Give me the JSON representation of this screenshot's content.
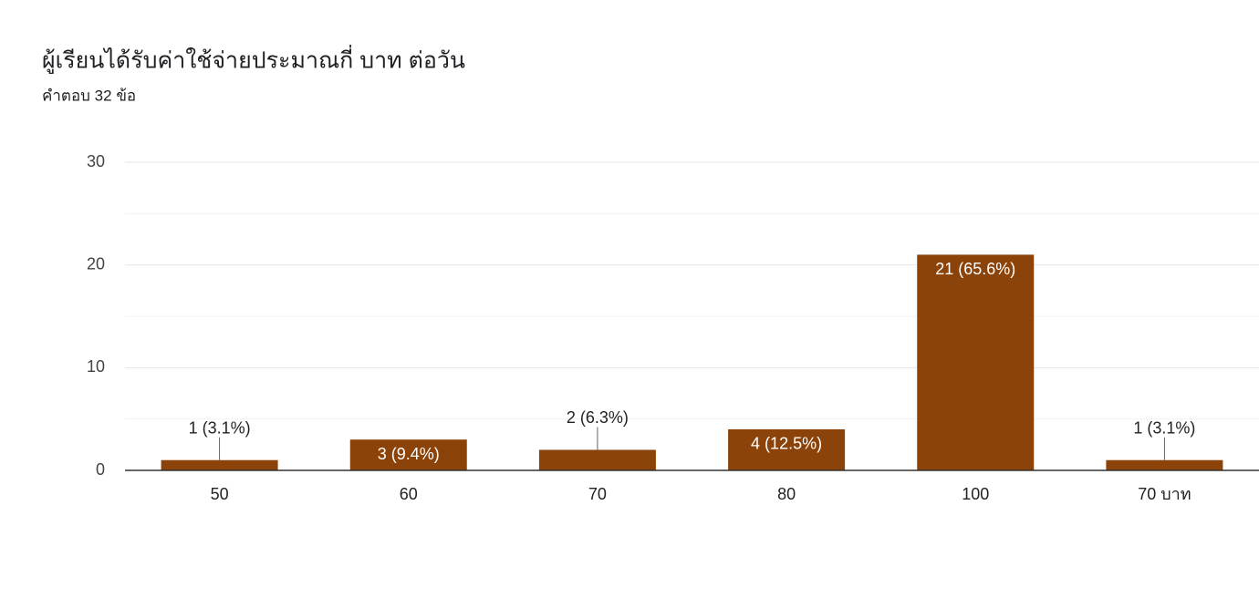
{
  "chart_data": {
    "type": "bar",
    "title": "ผู้เรียนได้รับค่าใช้จ่ายประมาณกี่ บาท ต่อวัน",
    "subtitle": "คำตอบ 32 ข้อ",
    "categories": [
      "50",
      "60",
      "70",
      "80",
      "100",
      "70 บาท"
    ],
    "values": [
      1,
      3,
      2,
      4,
      21,
      1
    ],
    "value_labels": [
      "1 (3.1%)",
      "3 (9.4%)",
      "2 (6.3%)",
      "4 (12.5%)",
      "21 (65.6%)",
      "1 (3.1%)"
    ],
    "color": "#8b4309",
    "ylim": [
      0,
      30
    ],
    "yticks": [
      0,
      10,
      20,
      30
    ],
    "minor_yticks": [
      5,
      15,
      25
    ],
    "grid": true
  }
}
